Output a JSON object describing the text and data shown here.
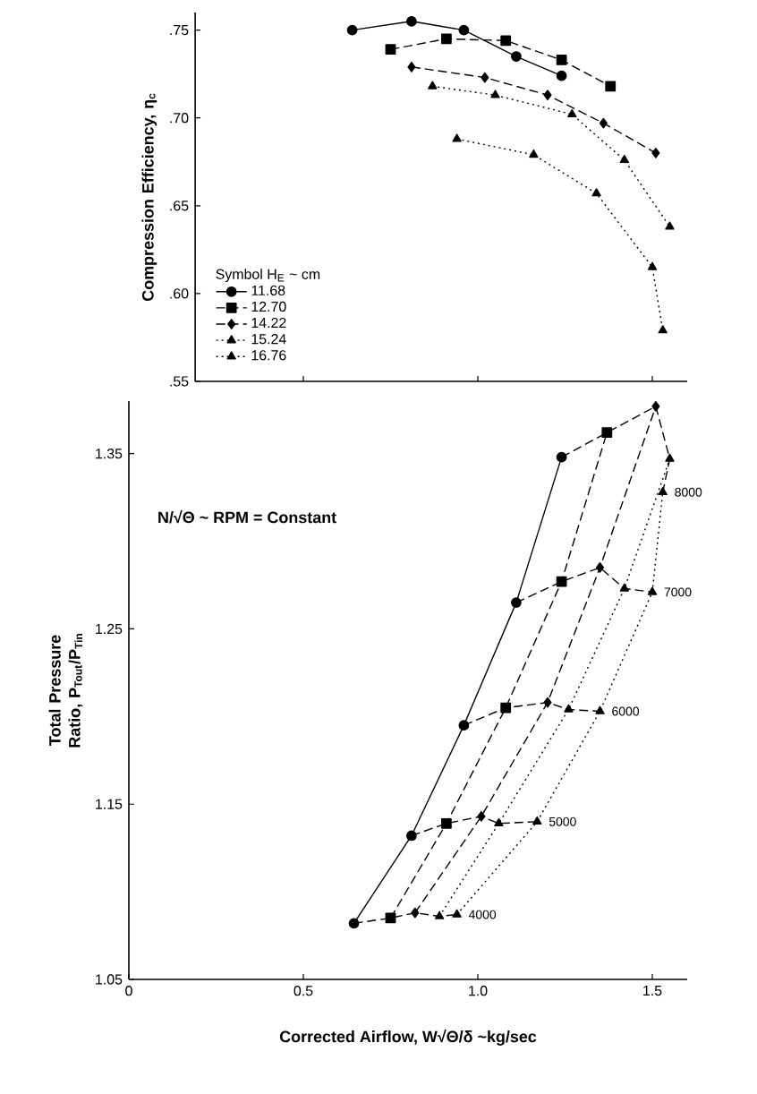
{
  "chart_data": [
    {
      "type": "line",
      "ylabel": "Compression Efficiency, η$_{c}$",
      "legend_title": "Symbol H$_{E}$ ~ cm",
      "legend": "bottom left",
      "tick_labels": "y",
      "xlim": [
        0.19,
        1.6
      ],
      "ylim": [
        0.55,
        0.76
      ],
      "xticks": [
        0.5,
        1,
        1.5
      ],
      "yticks": [
        {
          "value": 0.55,
          "label": ".55"
        },
        {
          "value": 0.6,
          "label": ".60"
        },
        {
          "value": 0.65,
          "label": ".65"
        },
        {
          "value": 0.7,
          "label": ".70"
        },
        {
          "value": 0.75,
          "label": ".75"
        }
      ],
      "series": [
        {
          "name": "11.68",
          "color": "#000000",
          "marker": "circle",
          "line_style": "solid",
          "x": [
            0.64,
            0.81,
            0.96,
            1.11,
            1.24
          ],
          "values": [
            0.75,
            0.755,
            0.75,
            0.735,
            0.724
          ]
        },
        {
          "name": "12.70",
          "color": "#000000",
          "marker": "square",
          "line_style": "dashed",
          "x": [
            0.75,
            0.91,
            1.08,
            1.24,
            1.38
          ],
          "values": [
            0.739,
            0.745,
            0.744,
            0.733,
            0.718
          ]
        },
        {
          "name": "14.22",
          "color": "#000000",
          "marker": "diamond",
          "line_style": "dashed",
          "x": [
            0.81,
            1.02,
            1.2,
            1.36,
            1.51
          ],
          "values": [
            0.729,
            0.723,
            0.713,
            0.697,
            0.68
          ]
        },
        {
          "name": "15.24",
          "color": "#000000",
          "marker": "triangle",
          "line_style": "dotted",
          "x": [
            0.87,
            1.05,
            1.27,
            1.42,
            1.55
          ],
          "values": [
            0.718,
            0.713,
            0.702,
            0.676,
            0.638
          ]
        },
        {
          "name": "16.76",
          "color": "#000000",
          "marker": "triangle",
          "line_style": "dotted",
          "x": [
            0.94,
            1.16,
            1.34,
            1.5,
            1.53
          ],
          "values": [
            0.688,
            0.679,
            0.657,
            0.615,
            0.579
          ]
        }
      ]
    },
    {
      "type": "line",
      "xlabel": "Corrected Airflow, W√Θ/δ  ~kg/sec",
      "ylabel": "Total Pressure Ratio, P$_{Tout}$/P$_{Tin}$",
      "annotations": [
        "N/√Θ ~ RPM = Constant"
      ],
      "xlim": [
        0,
        1.6
      ],
      "ylim": [
        1.05,
        1.38
      ],
      "xticks": [
        0,
        0.5,
        {
          "value": 1,
          "label": "1.0"
        },
        1.5
      ],
      "yticks": [
        1.05,
        1.15,
        1.25,
        1.35
      ],
      "series": [
        {
          "color": "#000000",
          "marker": "circle",
          "line_style": "solid",
          "x": [
            0.645,
            0.81,
            0.96,
            1.11,
            1.24
          ],
          "values": [
            1.082,
            1.132,
            1.195,
            1.265,
            1.348
          ]
        },
        {
          "color": "#000000",
          "marker": "square",
          "line_style": "dashed",
          "x": [
            0.75,
            0.91,
            1.08,
            1.24,
            1.37
          ],
          "values": [
            1.085,
            1.139,
            1.205,
            1.277,
            1.362
          ]
        },
        {
          "color": "#000000",
          "marker": "diamond",
          "line_style": "dashed",
          "x": [
            0.82,
            1.01,
            1.2,
            1.35,
            1.51
          ],
          "values": [
            1.088,
            1.143,
            1.208,
            1.285,
            1.377
          ]
        },
        {
          "color": "#000000",
          "marker": "triangle",
          "line_style": "dotted",
          "x": [
            0.89,
            1.06,
            1.26,
            1.42,
            1.55
          ],
          "values": [
            1.086,
            1.139,
            1.204,
            1.273,
            1.347
          ]
        },
        {
          "color": "#000000",
          "marker": "triangle",
          "line_style": "dotted",
          "x": [
            0.94,
            1.17,
            1.35,
            1.5,
            1.53
          ],
          "values": [
            1.087,
            1.14,
            1.203,
            1.271,
            1.328
          ]
        },
        {
          "name": "4000",
          "color": "#000000",
          "marker": "none",
          "line_style": "dashed",
          "x": [
            0.645,
            0.75,
            0.82,
            0.89,
            0.94
          ],
          "values": [
            1.082,
            1.085,
            1.088,
            1.086,
            1.087
          ]
        },
        {
          "name": "5000",
          "color": "#000000",
          "marker": "none",
          "line_style": "dashed",
          "x": [
            0.81,
            0.91,
            1.01,
            1.06,
            1.17
          ],
          "values": [
            1.132,
            1.139,
            1.143,
            1.139,
            1.14
          ]
        },
        {
          "name": "6000",
          "color": "#000000",
          "marker": "none",
          "line_style": "dashed",
          "x": [
            0.96,
            1.08,
            1.2,
            1.26,
            1.35
          ],
          "values": [
            1.195,
            1.205,
            1.208,
            1.204,
            1.203
          ]
        },
        {
          "name": "7000",
          "color": "#000000",
          "marker": "none",
          "line_style": "dashed",
          "x": [
            1.11,
            1.24,
            1.35,
            1.42,
            1.5
          ],
          "values": [
            1.265,
            1.277,
            1.285,
            1.273,
            1.271
          ]
        },
        {
          "name": "8000",
          "color": "#000000",
          "marker": "none",
          "line_style": "dashed",
          "x": [
            1.24,
            1.37,
            1.51,
            1.55,
            1.53
          ],
          "values": [
            1.348,
            1.362,
            1.377,
            1.347,
            1.328
          ]
        }
      ]
    }
  ]
}
